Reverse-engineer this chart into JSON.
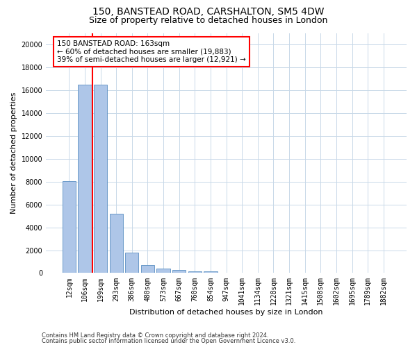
{
  "title_line1": "150, BANSTEAD ROAD, CARSHALTON, SM5 4DW",
  "title_line2": "Size of property relative to detached houses in London",
  "xlabel": "Distribution of detached houses by size in London",
  "ylabel": "Number of detached properties",
  "categories": [
    "12sqm",
    "106sqm",
    "199sqm",
    "293sqm",
    "386sqm",
    "480sqm",
    "573sqm",
    "667sqm",
    "760sqm",
    "854sqm",
    "947sqm",
    "1041sqm",
    "1134sqm",
    "1228sqm",
    "1321sqm",
    "1415sqm",
    "1508sqm",
    "1602sqm",
    "1695sqm",
    "1789sqm",
    "1882sqm"
  ],
  "bar_heights": [
    8050,
    16500,
    16500,
    5200,
    1800,
    700,
    400,
    280,
    170,
    120,
    0,
    0,
    0,
    0,
    0,
    0,
    0,
    0,
    0,
    0,
    0
  ],
  "bar_color": "#aec6e8",
  "bar_edge_color": "#5a8fc2",
  "vline_color": "red",
  "annotation_line1": "150 BANSTEAD ROAD: 163sqm",
  "annotation_line2": "← 60% of detached houses are smaller (19,883)",
  "annotation_line3": "39% of semi-detached houses are larger (12,921) →",
  "annotation_box_color": "red",
  "ylim": [
    0,
    21000
  ],
  "yticks": [
    0,
    2000,
    4000,
    6000,
    8000,
    10000,
    12000,
    14000,
    16000,
    18000,
    20000
  ],
  "footer_line1": "Contains HM Land Registry data © Crown copyright and database right 2024.",
  "footer_line2": "Contains public sector information licensed under the Open Government Licence v3.0.",
  "background_color": "#ffffff",
  "grid_color": "#c8d8e8",
  "title_fontsize": 10,
  "subtitle_fontsize": 9,
  "xlabel_fontsize": 8,
  "ylabel_fontsize": 8,
  "tick_fontsize": 7,
  "annotation_fontsize": 7.5,
  "footer_fontsize": 6
}
